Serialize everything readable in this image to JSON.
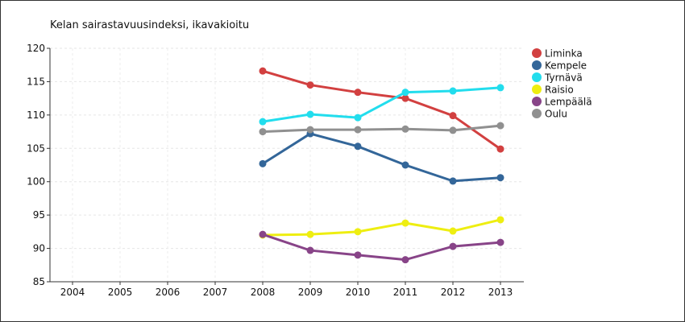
{
  "chart_data": {
    "type": "line",
    "title": "Kelan sairastavuusindeksi, ikavakioitu",
    "xlabel": "",
    "ylabel": "",
    "x": [
      "2004",
      "2005",
      "2006",
      "2007",
      "2008",
      "2009",
      "2010",
      "2011",
      "2012",
      "2013"
    ],
    "ylim": [
      85,
      120
    ],
    "yticks": [
      85,
      90,
      95,
      100,
      105,
      110,
      115,
      120
    ],
    "grid": true,
    "legend_position": "right",
    "series": [
      {
        "name": "Liminka",
        "color": "#d24040",
        "values": [
          null,
          null,
          null,
          null,
          116.6,
          114.5,
          113.4,
          112.5,
          109.9,
          104.9
        ]
      },
      {
        "name": "Kempele",
        "color": "#336699",
        "values": [
          null,
          null,
          null,
          null,
          102.7,
          107.2,
          105.3,
          102.5,
          100.1,
          100.6
        ]
      },
      {
        "name": "Tyrnävä",
        "color": "#22dded",
        "values": [
          null,
          null,
          null,
          null,
          109.0,
          110.1,
          109.6,
          113.4,
          113.6,
          114.1
        ]
      },
      {
        "name": "Raisio",
        "color": "#eeee11",
        "values": [
          null,
          null,
          null,
          null,
          92.0,
          92.1,
          92.5,
          93.8,
          92.6,
          94.3
        ]
      },
      {
        "name": "Lempäälä",
        "color": "#884488",
        "values": [
          null,
          null,
          null,
          null,
          92.1,
          89.7,
          89.0,
          88.3,
          90.3,
          90.9
        ]
      },
      {
        "name": "Oulu",
        "color": "#909090",
        "values": [
          null,
          null,
          null,
          null,
          107.5,
          107.8,
          107.8,
          107.9,
          107.7,
          108.4
        ]
      }
    ]
  }
}
